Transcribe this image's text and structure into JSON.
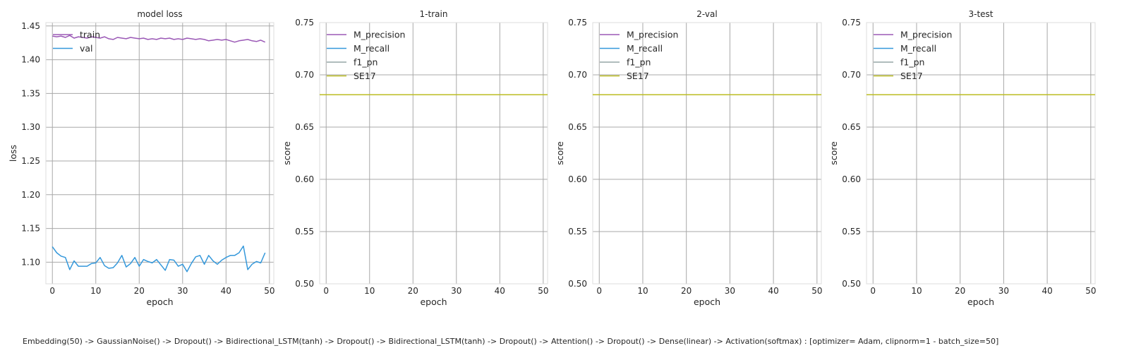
{
  "caption": "Embedding(50) -> GaussianNoise() -> Dropout() -> Bidirectional_LSTM(tanh) -> Dropout() -> Bidirectional_LSTM(tanh) -> Dropout() -> Attention() -> Dropout() -> Dense(linear) -> Activation(softmax) : [optimizer= Adam, clipnorm=1 - batch_size=50]",
  "chart_data": [
    {
      "type": "line",
      "title": "model loss",
      "xlabel": "epoch",
      "ylabel": "loss",
      "xlim": [
        -1.5,
        51
      ],
      "ylim": [
        1.068,
        1.455
      ],
      "xticks": [
        0,
        10,
        20,
        30,
        40,
        50
      ],
      "yticks": [
        1.1,
        1.15,
        1.2,
        1.25,
        1.3,
        1.35,
        1.4,
        1.45
      ],
      "ytick_decimals": 2,
      "grid": true,
      "legend": "top-left",
      "series": [
        {
          "name": "train",
          "color": "#9b59b6",
          "x": [
            0,
            1,
            2,
            3,
            4,
            5,
            6,
            7,
            8,
            9,
            10,
            11,
            12,
            13,
            14,
            15,
            16,
            17,
            18,
            19,
            20,
            21,
            22,
            23,
            24,
            25,
            26,
            27,
            28,
            29,
            30,
            31,
            32,
            33,
            34,
            35,
            36,
            37,
            38,
            39,
            40,
            41,
            42,
            43,
            44,
            45,
            46,
            47,
            48,
            49
          ],
          "y": [
            1.435,
            1.434,
            1.435,
            1.433,
            1.436,
            1.432,
            1.434,
            1.433,
            1.432,
            1.434,
            1.433,
            1.432,
            1.434,
            1.431,
            1.43,
            1.433,
            1.432,
            1.431,
            1.433,
            1.432,
            1.431,
            1.432,
            1.43,
            1.431,
            1.43,
            1.432,
            1.431,
            1.432,
            1.43,
            1.431,
            1.43,
            1.432,
            1.431,
            1.43,
            1.431,
            1.43,
            1.428,
            1.429,
            1.43,
            1.429,
            1.43,
            1.428,
            1.426,
            1.428,
            1.429,
            1.43,
            1.428,
            1.427,
            1.429,
            1.426
          ]
        },
        {
          "name": "val",
          "color": "#3498db",
          "x": [
            0,
            1,
            2,
            3,
            4,
            5,
            6,
            7,
            8,
            9,
            10,
            11,
            12,
            13,
            14,
            15,
            16,
            17,
            18,
            19,
            20,
            21,
            22,
            23,
            24,
            25,
            26,
            27,
            28,
            29,
            30,
            31,
            32,
            33,
            34,
            35,
            36,
            37,
            38,
            39,
            40,
            41,
            42,
            43,
            44,
            45,
            46,
            47,
            48,
            49
          ],
          "y": [
            1.123,
            1.114,
            1.109,
            1.107,
            1.089,
            1.102,
            1.094,
            1.094,
            1.094,
            1.098,
            1.099,
            1.107,
            1.095,
            1.091,
            1.092,
            1.099,
            1.11,
            1.093,
            1.098,
            1.107,
            1.094,
            1.104,
            1.101,
            1.099,
            1.104,
            1.096,
            1.088,
            1.104,
            1.103,
            1.094,
            1.097,
            1.086,
            1.098,
            1.108,
            1.11,
            1.097,
            1.11,
            1.102,
            1.097,
            1.103,
            1.107,
            1.11,
            1.11,
            1.114,
            1.124,
            1.089,
            1.097,
            1.101,
            1.099,
            1.114
          ]
        }
      ]
    },
    {
      "type": "line",
      "title": "1-train",
      "xlabel": "epoch",
      "ylabel": "score",
      "xlim": [
        -1.5,
        51
      ],
      "ylim": [
        0.5,
        0.75
      ],
      "xticks": [
        0,
        10,
        20,
        30,
        40,
        50
      ],
      "yticks": [
        0.5,
        0.55,
        0.6,
        0.65,
        0.7,
        0.75
      ],
      "ytick_decimals": 2,
      "grid": true,
      "legend": "top-left",
      "series": [
        {
          "name": "M_precision",
          "color": "#9b59b6",
          "x": [],
          "y": []
        },
        {
          "name": "M_recall",
          "color": "#3498db",
          "x": [],
          "y": []
        },
        {
          "name": "f1_pn",
          "color": "#95a5a6",
          "x": [],
          "y": []
        },
        {
          "name": "SE17",
          "color": "#bcbd22",
          "hline": 0.681
        }
      ]
    },
    {
      "type": "line",
      "title": "2-val",
      "xlabel": "epoch",
      "ylabel": "score",
      "xlim": [
        -1.5,
        51
      ],
      "ylim": [
        0.5,
        0.75
      ],
      "xticks": [
        0,
        10,
        20,
        30,
        40,
        50
      ],
      "yticks": [
        0.5,
        0.55,
        0.6,
        0.65,
        0.7,
        0.75
      ],
      "ytick_decimals": 2,
      "grid": true,
      "legend": "top-left",
      "series": [
        {
          "name": "M_precision",
          "color": "#9b59b6",
          "x": [],
          "y": []
        },
        {
          "name": "M_recall",
          "color": "#3498db",
          "x": [],
          "y": []
        },
        {
          "name": "f1_pn",
          "color": "#95a5a6",
          "x": [],
          "y": []
        },
        {
          "name": "SE17",
          "color": "#bcbd22",
          "hline": 0.681
        }
      ]
    },
    {
      "type": "line",
      "title": "3-test",
      "xlabel": "epoch",
      "ylabel": "score",
      "xlim": [
        -1.5,
        51
      ],
      "ylim": [
        0.5,
        0.75
      ],
      "xticks": [
        0,
        10,
        20,
        30,
        40,
        50
      ],
      "yticks": [
        0.5,
        0.55,
        0.6,
        0.65,
        0.7,
        0.75
      ],
      "ytick_decimals": 2,
      "grid": true,
      "legend": "top-left",
      "series": [
        {
          "name": "M_precision",
          "color": "#9b59b6",
          "x": [],
          "y": []
        },
        {
          "name": "M_recall",
          "color": "#3498db",
          "x": [],
          "y": []
        },
        {
          "name": "f1_pn",
          "color": "#95a5a6",
          "x": [],
          "y": []
        },
        {
          "name": "SE17",
          "color": "#bcbd22",
          "hline": 0.681
        }
      ]
    }
  ]
}
